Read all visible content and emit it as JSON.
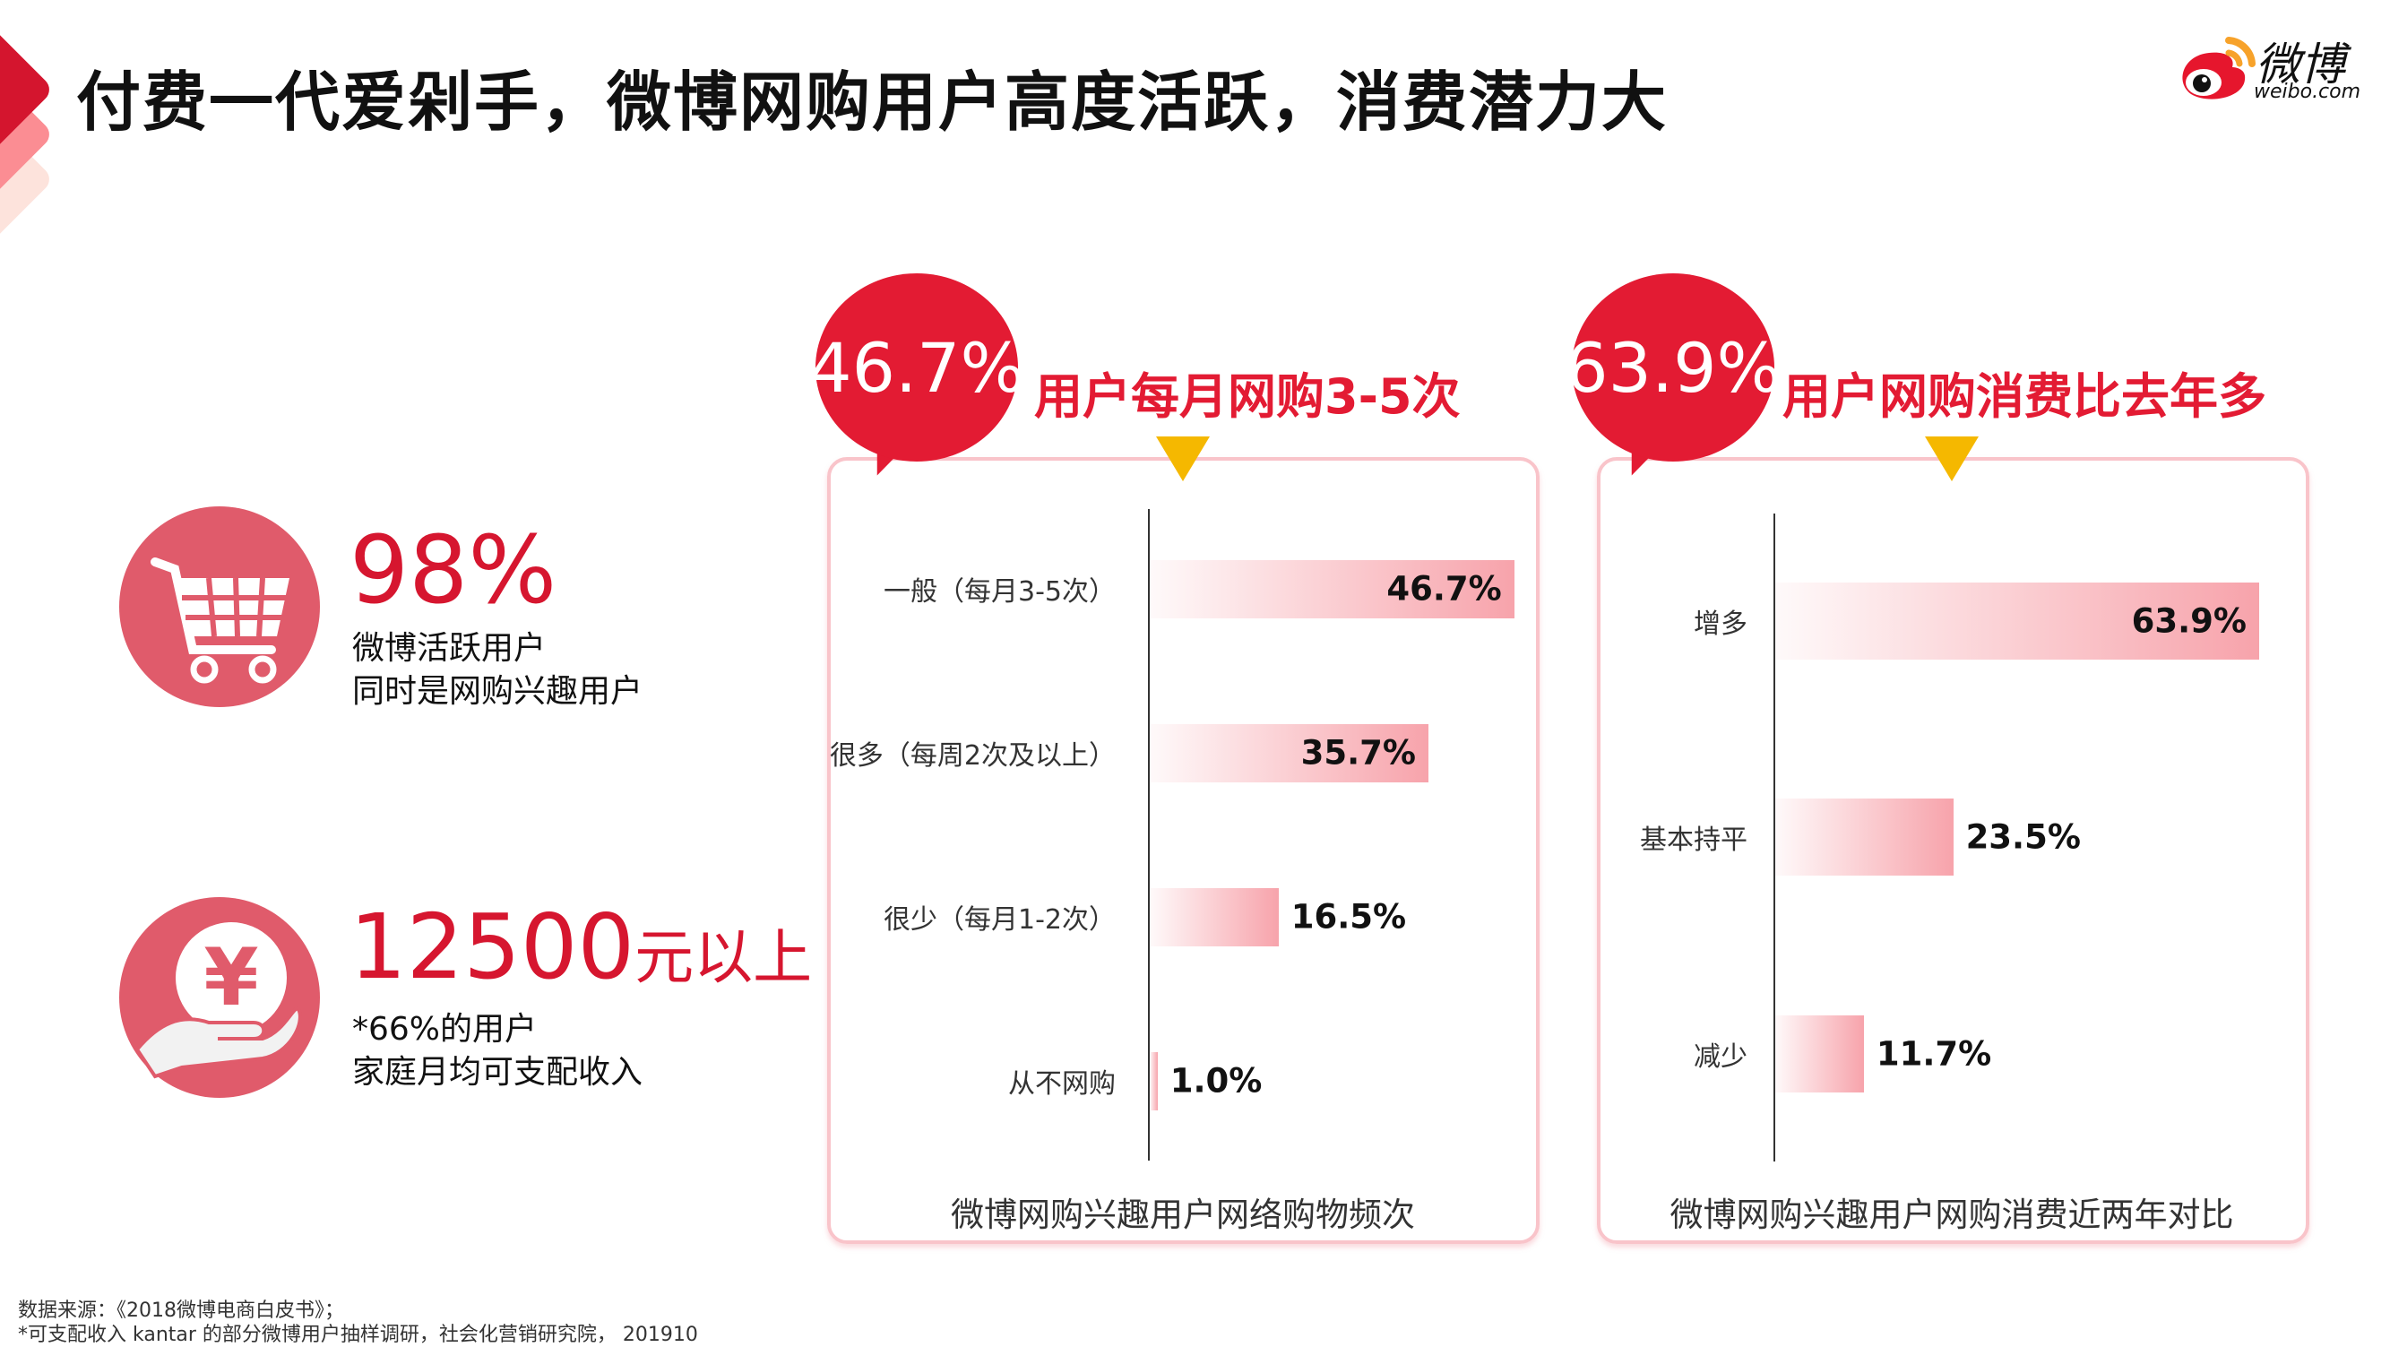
{
  "title": "付费一代爱剁手，微博网购用户高度活跃，消费潜力大",
  "logo": {
    "text": "微博",
    "sub": "weibo.com"
  },
  "colors": {
    "accent": "#e31b33",
    "icon_bg": "#e05b6b",
    "marker": "#f5b800",
    "bar": "#f7a3ab"
  },
  "stats": [
    {
      "icon": "shopping-cart-icon",
      "value": "98%",
      "line1": "微博活跃用户",
      "line2": "同时是网购兴趣用户"
    },
    {
      "icon": "yen-hand-icon",
      "value": "12500",
      "unit": "元以上",
      "line1": "*66%的用户",
      "line2": "家庭月均可支配收入"
    }
  ],
  "panels": [
    {
      "bubble": "46.7%",
      "headline": "用户每月网购3-5次",
      "caption": "微博网购兴趣用户网络购物频次"
    },
    {
      "bubble": "63.9%",
      "headline": "用户网购消费比去年多",
      "caption": "微博网购兴趣用户网购消费近两年对比"
    }
  ],
  "chart_data": [
    {
      "type": "bar",
      "orientation": "horizontal",
      "categories": [
        "一般（每月3-5次）",
        "很多（每周2次及以上）",
        "很少（每月1-2次）",
        "从不网购"
      ],
      "values": [
        46.7,
        35.7,
        16.5,
        1.0
      ],
      "labels": [
        "46.7%",
        "35.7%",
        "16.5%",
        "1.0%"
      ],
      "title": "微博网购兴趣用户网络购物频次"
    },
    {
      "type": "bar",
      "orientation": "horizontal",
      "categories": [
        "增多",
        "基本持平",
        "减少"
      ],
      "values": [
        63.9,
        23.5,
        11.7
      ],
      "labels": [
        "63.9%",
        "23.5%",
        "11.7%"
      ],
      "title": "微博网购兴趣用户网购消费近两年对比"
    }
  ],
  "footer": {
    "line1": "数据来源：《2018微博电商白皮书》；",
    "line2": "*可支配收入 kantar 的部分微博用户抽样调研，社会化营销研究院， 201910"
  }
}
